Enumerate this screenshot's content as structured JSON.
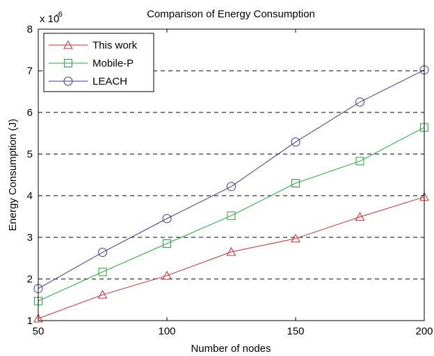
{
  "chart_data": {
    "type": "line",
    "title": "Comparison of Energy Consumption",
    "xlabel": "Number of nodes",
    "ylabel": "Energy Consumption (J)",
    "y_multiplier": "x 10",
    "y_exponent": "-6",
    "xlim": [
      50,
      200
    ],
    "ylim": [
      1,
      8
    ],
    "x_ticks": [
      50,
      100,
      150,
      200
    ],
    "y_ticks": [
      1,
      2,
      3,
      4,
      5,
      6,
      7,
      8
    ],
    "x": [
      50,
      75,
      100,
      125,
      150,
      175,
      200
    ],
    "grid": "horizontal dashed",
    "legend_position": "top-left",
    "series": [
      {
        "name": "This work",
        "marker": "triangle",
        "color": "#d9262a",
        "values": [
          1.05,
          1.62,
          2.08,
          2.65,
          2.97,
          3.49,
          3.97
        ]
      },
      {
        "name": "Mobile-P",
        "marker": "square",
        "color": "#1eaa3a",
        "values": [
          1.47,
          2.17,
          2.85,
          3.52,
          4.3,
          4.83,
          5.64
        ]
      },
      {
        "name": "LEACH",
        "marker": "circle",
        "color": "#3a3a9a",
        "values": [
          1.77,
          2.64,
          3.45,
          4.22,
          5.29,
          6.25,
          7.02
        ]
      }
    ]
  }
}
